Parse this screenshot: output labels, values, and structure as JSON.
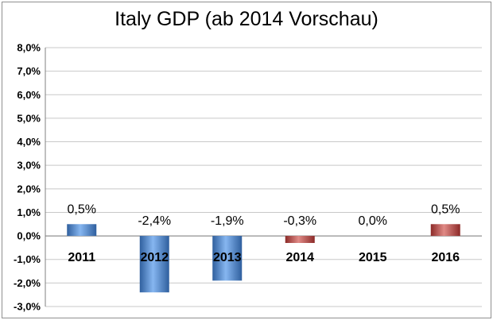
{
  "chart_data": {
    "type": "bar",
    "title": "Italy GDP (ab 2014 Vorschau)",
    "categories": [
      "2011",
      "2012",
      "2013",
      "2014",
      "2015",
      "2016"
    ],
    "values": [
      0.5,
      -2.4,
      -1.9,
      -0.3,
      0.0,
      0.5
    ],
    "data_labels": [
      "0,5%",
      "-2,4%",
      "-1,9%",
      "-0,3%",
      "0,0%",
      "0,5%"
    ],
    "ylim": [
      -3.0,
      8.0
    ],
    "yticks": [
      8.0,
      7.0,
      6.0,
      5.0,
      4.0,
      3.0,
      2.0,
      1.0,
      0.0,
      -1.0,
      -2.0,
      -3.0
    ],
    "ytick_labels": [
      "8,0%",
      "7,0%",
      "6,0%",
      "5,0%",
      "4,0%",
      "3,0%",
      "2,0%",
      "1,0%",
      "0,0%",
      "-1,0%",
      "-2,0%",
      "-3,0%"
    ],
    "grid": true,
    "legend": "none",
    "xlabel": "",
    "ylabel": "",
    "colors": {
      "actual": "#4a86d6",
      "forecast": "#c0504d",
      "grid": "#c8c8c8"
    },
    "forecast_from_index": 3
  }
}
